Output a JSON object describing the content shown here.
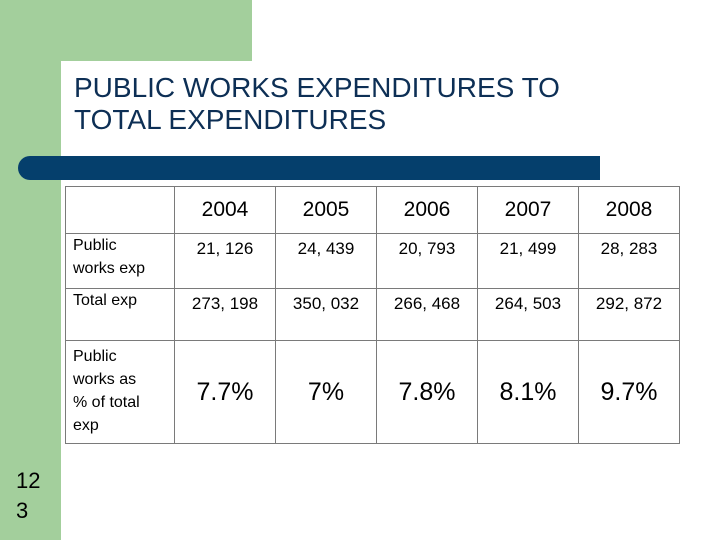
{
  "slide": {
    "title_lines": [
      "PUBLIC WORKS EXPENDITURES TO",
      "TOTAL EXPENDITURES"
    ],
    "number_lines": [
      "12",
      "3"
    ]
  },
  "table": {
    "headers": [
      "",
      "2004",
      "2005",
      "2006",
      "2007",
      "2008"
    ],
    "rows": [
      {
        "label_lines": [
          "Public",
          "works exp"
        ],
        "cells": [
          "21, 126",
          "24, 439",
          "20, 793",
          "21, 499",
          "28, 283"
        ]
      },
      {
        "label_lines": [
          "Total exp"
        ],
        "cells": [
          "273, 198",
          "350, 032",
          "266, 468",
          "264, 503",
          "292, 872"
        ]
      },
      {
        "label_lines": [
          "Public",
          "works as",
          "% of total",
          "exp"
        ],
        "cells": [
          "7.7%",
          "7%",
          "7.8%",
          "8.1%",
          "9.7%"
        ]
      }
    ]
  },
  "colors": {
    "green": "#a3cf9c",
    "bar": "#053f6c",
    "title": "#0d2f55",
    "border": "#7a7a7a"
  }
}
